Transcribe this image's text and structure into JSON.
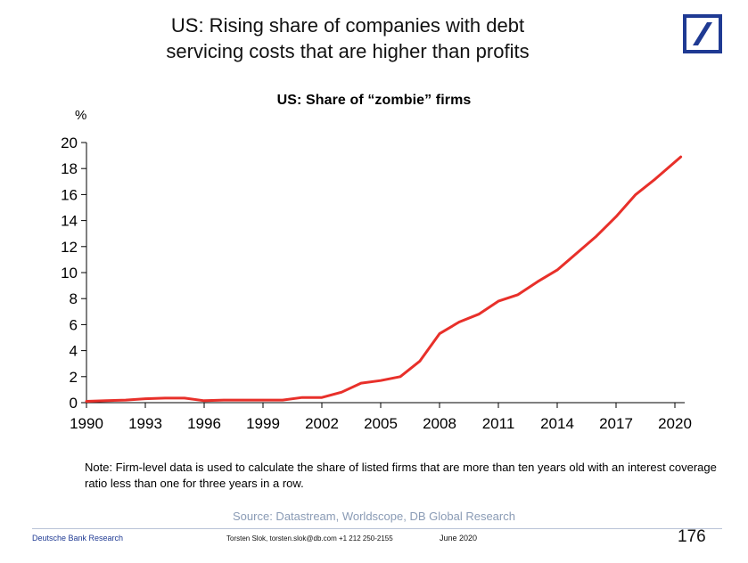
{
  "slide": {
    "title_line1": "US: Rising share of companies with debt",
    "title_line2": "servicing costs that are higher than profits"
  },
  "logo": {
    "icon": "deutsche-bank-logo",
    "color": "#1f3a93"
  },
  "chart_data": {
    "type": "line",
    "title": "US: Share of “zombie” firms",
    "ylabel": "%",
    "xlabel": "",
    "ylim": [
      0,
      20
    ],
    "xlim": [
      1990,
      2020.5
    ],
    "y_ticks": [
      "0",
      "2",
      "4",
      "6",
      "8",
      "10",
      "12",
      "14",
      "16",
      "18",
      "20"
    ],
    "x_ticks": [
      "1990",
      "1993",
      "1996",
      "1999",
      "2002",
      "2005",
      "2008",
      "2011",
      "2014",
      "2017",
      "2020"
    ],
    "grid": false,
    "line_color": "#e8302a",
    "x": [
      1990,
      1991,
      1992,
      1993,
      1994,
      1995,
      1996,
      1997,
      1998,
      1999,
      2000,
      2001,
      2002,
      2003,
      2004,
      2005,
      2006,
      2007,
      2008,
      2009,
      2010,
      2011,
      2012,
      2013,
      2014,
      2015,
      2016,
      2017,
      2018,
      2019,
      2020.3
    ],
    "values": [
      0.1,
      0.15,
      0.2,
      0.3,
      0.35,
      0.35,
      0.15,
      0.2,
      0.2,
      0.2,
      0.2,
      0.4,
      0.4,
      0.8,
      1.5,
      1.7,
      2.0,
      3.2,
      5.3,
      6.2,
      6.8,
      7.8,
      8.3,
      9.3,
      10.2,
      11.5,
      12.8,
      14.3,
      16.0,
      17.2,
      18.9
    ]
  },
  "note": "Note: Firm-level data is used to calculate the share of listed firms that are more than ten years old with an interest coverage ratio less than one for three years in a row.",
  "source": "Source: Datastream, Worldscope, DB Global Research",
  "footer": {
    "brand": "Deutsche Bank Research",
    "contact": "Torsten Slok, torsten.slok@db.com  +1 212 250-2155",
    "date": "June 2020",
    "page": "176"
  }
}
